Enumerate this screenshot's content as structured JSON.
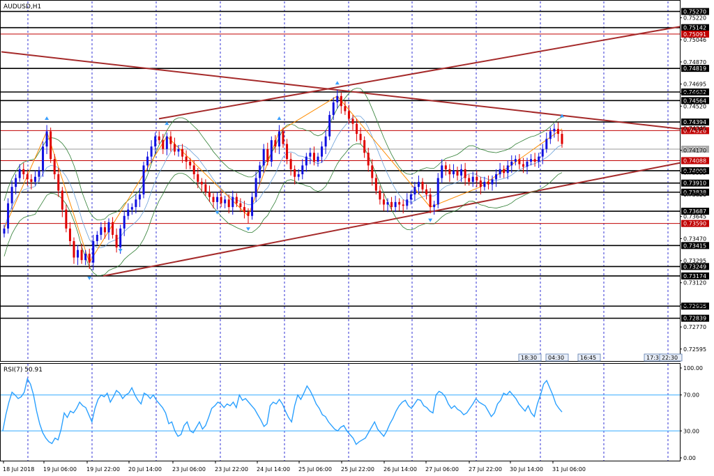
{
  "window": {
    "title": "AUDUSD,H1"
  },
  "rsi_label": "RSI(7) 50.91",
  "colors": {
    "bull": "#1010e0",
    "bear": "#e00000",
    "hline": "#000000",
    "hline_red": "#c00000",
    "trendline": "#a52a2a",
    "bands": "#2e7d32",
    "zigzag": "#ff8c00",
    "fractal": "#3aa0ff",
    "rsi": "#2aa0ff",
    "rsi_level": "#33aaff",
    "grid": "#0000cc"
  },
  "timeframe_markers": [
    "18:30",
    "04:30",
    "16:45",
    "17:3",
    "22:30"
  ],
  "chart_data": {
    "type": "candlestick",
    "symbol": "AUDUSD",
    "timeframe": "H1",
    "ylim": [
      0.725,
      0.7535
    ],
    "price_ticks": [
      "0.75220",
      "0.75046",
      "0.74870",
      "0.74695",
      "0.74620",
      "0.74520",
      "0.74345",
      "0.74170",
      "0.73995",
      "0.73820",
      "0.73645",
      "0.73470",
      "0.73295",
      "0.73120",
      "0.72945",
      "0.72770",
      "0.72595"
    ],
    "x_labels": [
      "18 Jul 2018",
      "19 Jul 06:00",
      "19 Jul 22:00",
      "20 Jul 14:00",
      "23 Jul 06:00",
      "23 Jul 22:00",
      "24 Jul 14:00",
      "25 Jul 06:00",
      "25 Jul 22:00",
      "26 Jul 14:00",
      "27 Jul 06:00",
      "27 Jul 22:00",
      "30 Jul 14:00",
      "31 Jul 06:00"
    ],
    "horizontal_levels": [
      {
        "value": 0.7527,
        "label": "0.75270",
        "color": "black"
      },
      {
        "value": 0.75142,
        "label": "0.75142",
        "color": "black"
      },
      {
        "value": 0.75091,
        "label": "0.75091",
        "color": "red"
      },
      {
        "value": 0.74819,
        "label": "0.74819",
        "color": "black"
      },
      {
        "value": 0.74632,
        "label": "0.74632",
        "color": "black"
      },
      {
        "value": 0.74564,
        "label": "0.74564",
        "color": "black"
      },
      {
        "value": 0.74394,
        "label": "0.74394",
        "color": "black"
      },
      {
        "value": 0.74326,
        "label": "0.74326",
        "color": "red"
      },
      {
        "value": 0.74179,
        "label": "0.74179",
        "color": "gray"
      },
      {
        "value": 0.74088,
        "label": "0.74088",
        "color": "red"
      },
      {
        "value": 0.74008,
        "label": "0.74008",
        "color": "black"
      },
      {
        "value": 0.7391,
        "label": "0.73910",
        "color": "black"
      },
      {
        "value": 0.73838,
        "label": "0.73838",
        "color": "black"
      },
      {
        "value": 0.73687,
        "label": "0.73687",
        "color": "black"
      },
      {
        "value": 0.7359,
        "label": "0.73590",
        "color": "red"
      },
      {
        "value": 0.73415,
        "label": "0.73415",
        "color": "black"
      },
      {
        "value": 0.73249,
        "label": "0.73249",
        "color": "black"
      },
      {
        "value": 0.73174,
        "label": "0.73174",
        "color": "black"
      },
      {
        "value": 0.72935,
        "label": "0.72935",
        "color": "black"
      },
      {
        "value": 0.72839,
        "label": "0.72839",
        "color": "black"
      }
    ],
    "closes": [
      0.7355,
      0.7375,
      0.7388,
      0.7395,
      0.7402,
      0.7398,
      0.7394,
      0.7392,
      0.7396,
      0.7401,
      0.742,
      0.7432,
      0.741,
      0.7398,
      0.7385,
      0.737,
      0.7355,
      0.7345,
      0.7332,
      0.7338,
      0.733,
      0.7335,
      0.7328,
      0.7345,
      0.735,
      0.7356,
      0.7352,
      0.736,
      0.735,
      0.734,
      0.7355,
      0.7365,
      0.737,
      0.7372,
      0.7378,
      0.7382,
      0.7405,
      0.7412,
      0.742,
      0.7428,
      0.7425,
      0.7418,
      0.7428,
      0.7422,
      0.7416,
      0.7418,
      0.7412,
      0.7408,
      0.7405,
      0.7398,
      0.7392,
      0.739,
      0.7384,
      0.738,
      0.7376,
      0.738,
      0.7375,
      0.7378,
      0.7372,
      0.738,
      0.7375,
      0.7372,
      0.7368,
      0.7365,
      0.738,
      0.7395,
      0.7405,
      0.7418,
      0.7408,
      0.7425,
      0.742,
      0.7432,
      0.7422,
      0.741,
      0.7402,
      0.7396,
      0.7398,
      0.7405,
      0.7412,
      0.7415,
      0.7408,
      0.7412,
      0.742,
      0.7428,
      0.7445,
      0.7455,
      0.746,
      0.7452,
      0.7448,
      0.7442,
      0.7438,
      0.743,
      0.7425,
      0.7415,
      0.7405,
      0.7395,
      0.7385,
      0.7378,
      0.7374,
      0.7376,
      0.7372,
      0.7376,
      0.7374,
      0.7373,
      0.7378,
      0.7382,
      0.7388,
      0.7392,
      0.7386,
      0.7382,
      0.7372,
      0.7374,
      0.7395,
      0.7405,
      0.7402,
      0.7398,
      0.7401,
      0.7397,
      0.7402,
      0.7395,
      0.7392,
      0.7396,
      0.7393,
      0.7388,
      0.7392,
      0.739,
      0.7394,
      0.7398,
      0.7402,
      0.7399,
      0.7405,
      0.7408,
      0.741,
      0.7406,
      0.7404,
      0.7408,
      0.741,
      0.7408,
      0.7412,
      0.7418,
      0.7426,
      0.7432,
      0.7434,
      0.743,
      0.7422
    ],
    "rsi": {
      "period": 7,
      "value": 50.91,
      "levels": [
        70,
        30
      ],
      "scale_labels": [
        "100.00",
        "70.00",
        "30.00",
        "0.00"
      ],
      "values": [
        30,
        48,
        62,
        73,
        70,
        66,
        68,
        73,
        88,
        82,
        70,
        52,
        38,
        28,
        22,
        18,
        16,
        22,
        20,
        32,
        50,
        45,
        52,
        50,
        55,
        62,
        58,
        56,
        48,
        40,
        55,
        65,
        70,
        68,
        72,
        62,
        68,
        75,
        72,
        66,
        70,
        72,
        78,
        70,
        64,
        60,
        72,
        70,
        66,
        70,
        64,
        60,
        56,
        50,
        38,
        40,
        30,
        24,
        26,
        36,
        40,
        30,
        28,
        34,
        40,
        32,
        36,
        45,
        55,
        58,
        62,
        60,
        56,
        60,
        58,
        62,
        56,
        70,
        64,
        66,
        62,
        58,
        54,
        48,
        42,
        35,
        38,
        58,
        62,
        60,
        65,
        60,
        52,
        45,
        40,
        58,
        70,
        65,
        72,
        80,
        75,
        68,
        60,
        55,
        48,
        46,
        40,
        36,
        32,
        30,
        34,
        36,
        30,
        26,
        22,
        15,
        18,
        20,
        22,
        28,
        34,
        40,
        32,
        28,
        24,
        30,
        38,
        44,
        52,
        58,
        62,
        64,
        58,
        55,
        60,
        65,
        64,
        58,
        56,
        52,
        50,
        70,
        74,
        72,
        68,
        60,
        55,
        58,
        54,
        52,
        48,
        50,
        55,
        60,
        66,
        62,
        60,
        58,
        52,
        46,
        50,
        60,
        64,
        72,
        70,
        74,
        70,
        66,
        60,
        56,
        52,
        58,
        50,
        46,
        60,
        70,
        82,
        86,
        78,
        70,
        60,
        55,
        51
      ]
    }
  }
}
